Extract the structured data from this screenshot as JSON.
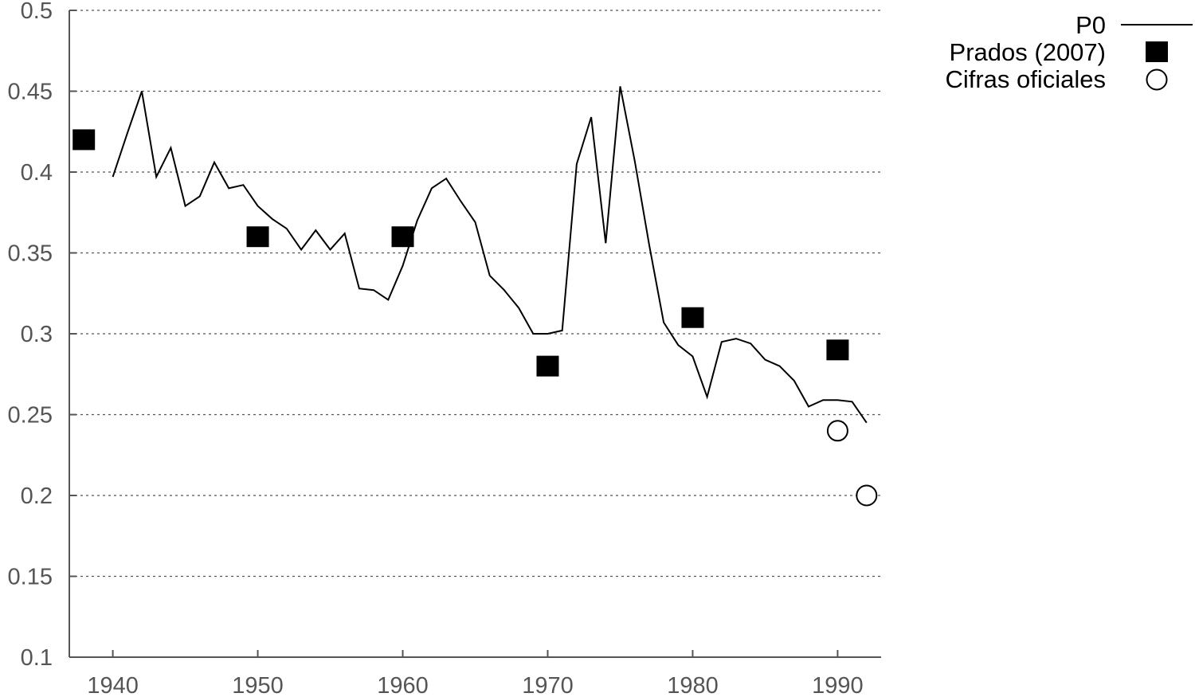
{
  "chart_data": {
    "type": "line",
    "xlim": [
      1937,
      1993
    ],
    "ylim": [
      0.1,
      0.5
    ],
    "x_ticks": [
      1940,
      1950,
      1960,
      1970,
      1980,
      1990
    ],
    "y_ticks": [
      0.1,
      0.15,
      0.2,
      0.25,
      0.3,
      0.35,
      0.4,
      0.45,
      0.5
    ],
    "x_tick_labels": [
      "1940",
      "1950",
      "1960",
      "1970",
      "1980",
      "1990"
    ],
    "y_tick_labels": [
      "0.1",
      "0.15",
      "0.2",
      "0.25",
      "0.3",
      "0.35",
      "0.4",
      "0.45",
      "0.5"
    ],
    "grid": {
      "horizontal": true,
      "style": "dotted"
    },
    "legend_position": "top-right",
    "series": [
      {
        "name": "P0",
        "kind": "line",
        "color": "#000000",
        "points": [
          [
            1940,
            0.397
          ],
          [
            1941,
            0.424
          ],
          [
            1942,
            0.45
          ],
          [
            1943,
            0.397
          ],
          [
            1944,
            0.415
          ],
          [
            1945,
            0.379
          ],
          [
            1946,
            0.385
          ],
          [
            1947,
            0.406
          ],
          [
            1948,
            0.39
          ],
          [
            1949,
            0.392
          ],
          [
            1950,
            0.379
          ],
          [
            1951,
            0.371
          ],
          [
            1952,
            0.365
          ],
          [
            1953,
            0.352
          ],
          [
            1954,
            0.364
          ],
          [
            1955,
            0.352
          ],
          [
            1956,
            0.362
          ],
          [
            1957,
            0.328
          ],
          [
            1958,
            0.327
          ],
          [
            1959,
            0.321
          ],
          [
            1960,
            0.342
          ],
          [
            1961,
            0.37
          ],
          [
            1962,
            0.39
          ],
          [
            1963,
            0.396
          ],
          [
            1964,
            0.382
          ],
          [
            1965,
            0.369
          ],
          [
            1966,
            0.336
          ],
          [
            1967,
            0.327
          ],
          [
            1968,
            0.316
          ],
          [
            1969,
            0.3
          ],
          [
            1970,
            0.3
          ],
          [
            1971,
            0.302
          ],
          [
            1972,
            0.405
          ],
          [
            1973,
            0.434
          ],
          [
            1974,
            0.356
          ],
          [
            1975,
            0.453
          ],
          [
            1976,
            0.407
          ],
          [
            1977,
            0.355
          ],
          [
            1978,
            0.307
          ],
          [
            1979,
            0.293
          ],
          [
            1980,
            0.286
          ],
          [
            1981,
            0.261
          ],
          [
            1982,
            0.295
          ],
          [
            1983,
            0.297
          ],
          [
            1984,
            0.294
          ],
          [
            1985,
            0.284
          ],
          [
            1986,
            0.28
          ],
          [
            1987,
            0.271
          ],
          [
            1988,
            0.255
          ],
          [
            1989,
            0.259
          ],
          [
            1990,
            0.259
          ],
          [
            1991,
            0.258
          ],
          [
            1992,
            0.245
          ]
        ]
      },
      {
        "name": "Prados (2007)",
        "kind": "filled-square",
        "color": "#000000",
        "points": [
          [
            1938,
            0.42
          ],
          [
            1950,
            0.36
          ],
          [
            1960,
            0.36
          ],
          [
            1970,
            0.28
          ],
          [
            1980,
            0.31
          ],
          [
            1990,
            0.29
          ]
        ]
      },
      {
        "name": "Cifras oficiales",
        "kind": "open-circle",
        "color": "#000000",
        "points": [
          [
            1990,
            0.24
          ],
          [
            1992,
            0.2
          ]
        ]
      }
    ]
  }
}
